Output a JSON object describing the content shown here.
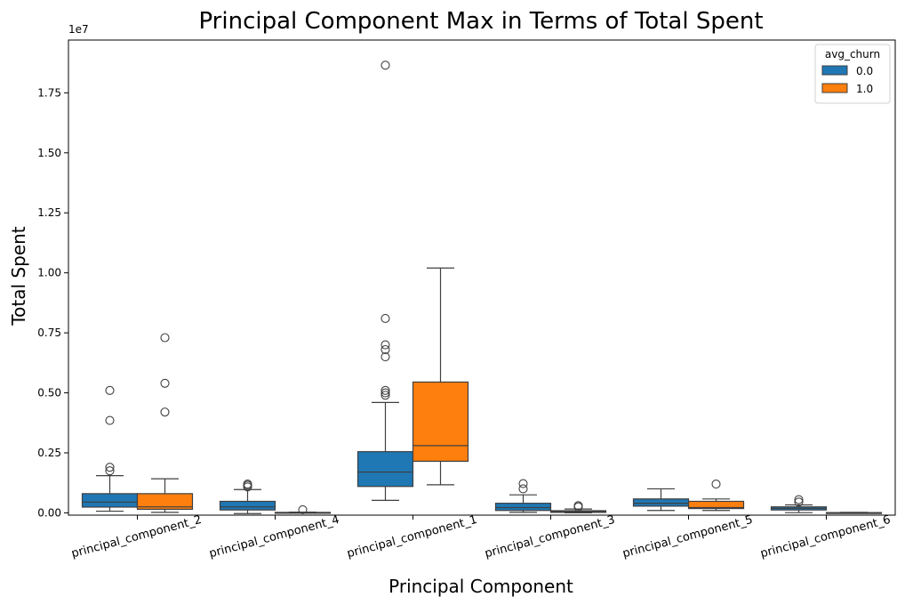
{
  "chart_data": {
    "type": "boxplot",
    "title": "Principal Component Max in Terms of Total Spent",
    "xlabel": "Principal Component",
    "ylabel": "Total Spent",
    "y_offset_label": "1e7",
    "ylim": [
      -0.0095,
      1.97
    ],
    "yticks": [
      "0.00",
      "0.25",
      "0.50",
      "0.75",
      "1.00",
      "1.25",
      "1.50",
      "1.75"
    ],
    "categories": [
      "principal_component_2",
      "principal_component_4",
      "principal_component_1",
      "principal_component_3",
      "principal_component_5",
      "principal_component_6"
    ],
    "legend": {
      "title": "avg_churn",
      "placement": "top-right"
    },
    "grid": false,
    "series": [
      {
        "name": "0.0",
        "color": "#1f77b4",
        "boxes": [
          {
            "whislo": 0.007,
            "q1": 0.024,
            "med": 0.045,
            "q3": 0.08,
            "whishi": 0.155,
            "fliers": [
              0.51,
              0.385,
              0.19,
              0.175
            ]
          },
          {
            "whislo": -0.003,
            "q1": 0.012,
            "med": 0.025,
            "q3": 0.048,
            "whishi": 0.097,
            "fliers": [
              0.108,
              0.115,
              0.12
            ]
          },
          {
            "whislo": 0.052,
            "q1": 0.11,
            "med": 0.17,
            "q3": 0.255,
            "whishi": 0.46,
            "fliers": [
              1.865,
              0.81,
              0.7,
              0.68,
              0.65,
              0.51,
              0.5,
              0.49
            ]
          },
          {
            "whislo": 0.002,
            "q1": 0.01,
            "med": 0.022,
            "q3": 0.04,
            "whishi": 0.075,
            "fliers": [
              0.1,
              0.122
            ]
          },
          {
            "whislo": 0.01,
            "q1": 0.028,
            "med": 0.04,
            "q3": 0.058,
            "whishi": 0.1,
            "fliers": []
          },
          {
            "whislo": 0.001,
            "q1": 0.012,
            "med": 0.019,
            "q3": 0.025,
            "whishi": 0.033,
            "fliers": [
              0.045,
              0.055
            ]
          }
        ]
      },
      {
        "name": "1.0",
        "color": "#ff7f0e",
        "boxes": [
          {
            "whislo": 0.002,
            "q1": 0.015,
            "med": 0.025,
            "q3": 0.08,
            "whishi": 0.142,
            "fliers": [
              0.73,
              0.54,
              0.42
            ]
          },
          {
            "whislo": 0.0,
            "q1": 0.0,
            "med": 0.001,
            "q3": 0.002,
            "whishi": 0.003,
            "fliers": [
              0.013
            ]
          },
          {
            "whislo": 0.117,
            "q1": 0.215,
            "med": 0.28,
            "q3": 0.545,
            "whishi": 1.02,
            "fliers": []
          },
          {
            "whislo": 0.0,
            "q1": 0.002,
            "med": 0.005,
            "q3": 0.009,
            "whishi": 0.016,
            "fliers": [
              0.025,
              0.03
            ]
          },
          {
            "whislo": 0.01,
            "q1": 0.018,
            "med": 0.022,
            "q3": 0.048,
            "whishi": 0.058,
            "fliers": [
              0.12
            ]
          },
          {
            "whislo": 0.0,
            "q1": 0.0,
            "med": 0.001,
            "q3": 0.001,
            "whishi": 0.002,
            "fliers": []
          }
        ]
      }
    ]
  }
}
